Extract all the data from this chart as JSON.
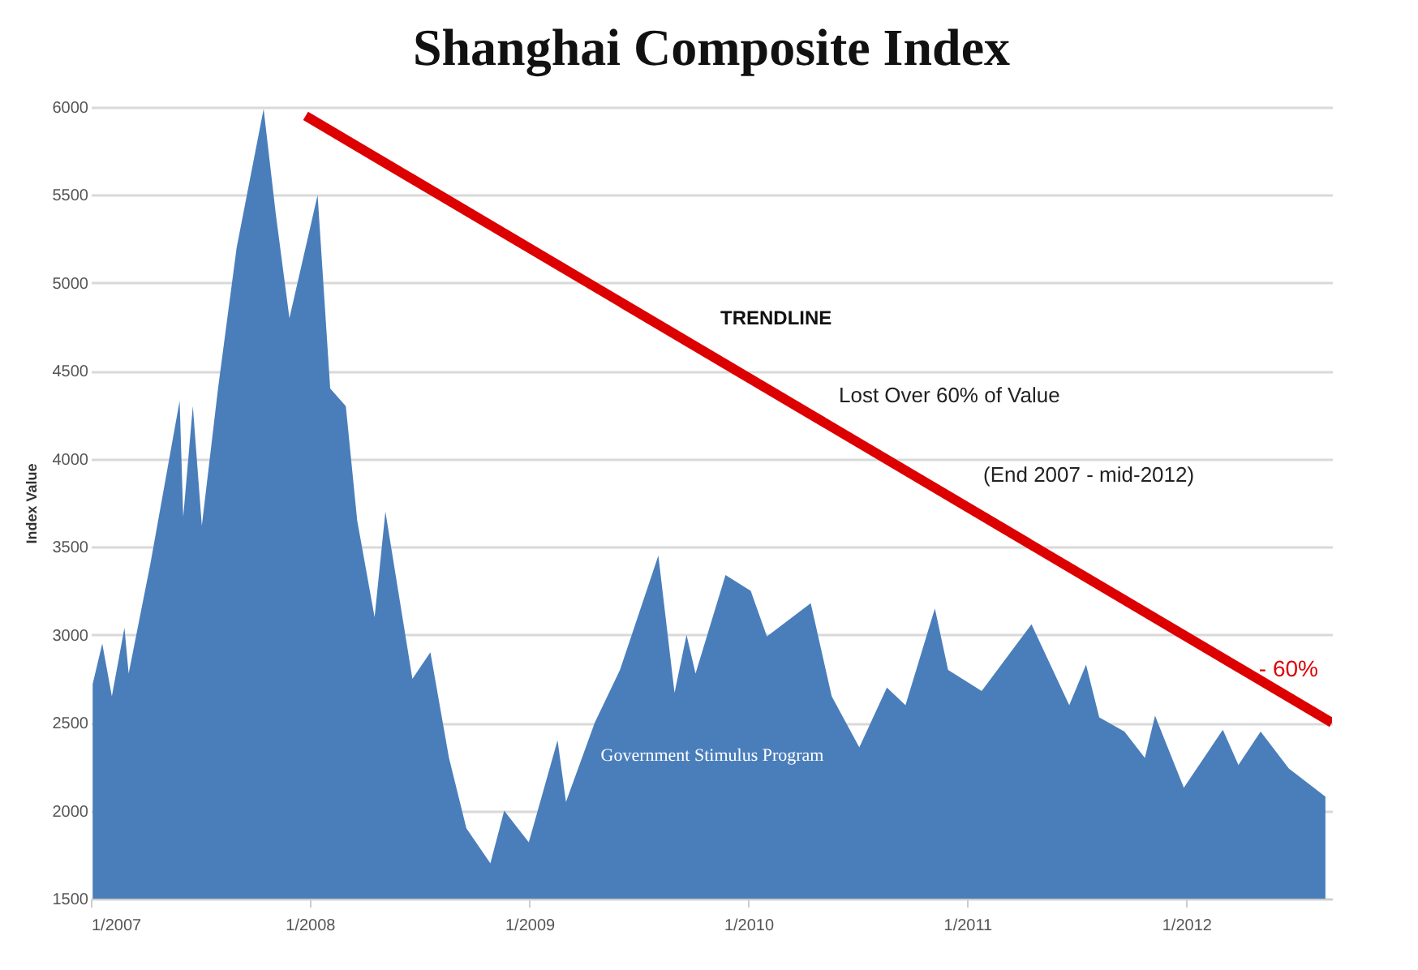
{
  "chart_data": {
    "type": "area",
    "title": "Shanghai Composite Index",
    "ylabel": "Index Value",
    "xlim": [
      "2007-01-01",
      "2012-08-31"
    ],
    "xticks": [
      {
        "value": "2007-01-01",
        "label": "1/2007"
      },
      {
        "value": "2008-01-01",
        "label": "1/2008"
      },
      {
        "value": "2009-01-01",
        "label": "1/2009"
      },
      {
        "value": "2010-01-01",
        "label": "1/2010"
      },
      {
        "value": "2011-01-01",
        "label": "1/2011"
      },
      {
        "value": "2012-01-01",
        "label": "1/2012"
      }
    ],
    "ylim": [
      1500,
      6000
    ],
    "yticks": [
      1500,
      2000,
      2500,
      3000,
      3500,
      4000,
      4500,
      5000,
      5500,
      6000
    ],
    "grid": "y",
    "series": [
      {
        "color": "#4a7ebb",
        "x": [
          "2007-01-04",
          "2007-01-20",
          "2007-02-05",
          "2007-02-26",
          "2007-03-05",
          "2007-04-10",
          "2007-05-29",
          "2007-06-04",
          "2007-06-20",
          "2007-07-05",
          "2007-08-01",
          "2007-09-01",
          "2007-10-16",
          "2007-11-05",
          "2007-11-28",
          "2008-01-14",
          "2008-02-04",
          "2008-03-01",
          "2008-03-20",
          "2008-04-18",
          "2008-05-06",
          "2008-06-20",
          "2008-07-20",
          "2008-08-20",
          "2008-09-18",
          "2008-10-28",
          "2008-11-20",
          "2008-12-31",
          "2009-02-17",
          "2009-03-03",
          "2009-04-20",
          "2009-06-01",
          "2009-08-04",
          "2009-08-31",
          "2009-09-20",
          "2009-10-05",
          "2009-11-24",
          "2010-01-05",
          "2010-02-01",
          "2010-04-15",
          "2010-05-20",
          "2010-07-05",
          "2010-08-20",
          "2010-09-20",
          "2010-11-08",
          "2010-11-30",
          "2011-01-25",
          "2011-04-18",
          "2011-06-20",
          "2011-07-18",
          "2011-08-09",
          "2011-09-20",
          "2011-10-24",
          "2011-11-10",
          "2011-12-28",
          "2012-03-02",
          "2012-03-28",
          "2012-05-04",
          "2012-06-20",
          "2012-08-20"
        ],
        "values": [
          2720,
          2950,
          2650,
          3040,
          2780,
          3400,
          4330,
          3670,
          4300,
          3620,
          4400,
          5200,
          5990,
          5400,
          4800,
          5500,
          4400,
          4300,
          3650,
          3100,
          3700,
          2750,
          2900,
          2300,
          1900,
          1700,
          2000,
          1820,
          2400,
          2050,
          2500,
          2800,
          3450,
          2670,
          3000,
          2780,
          3340,
          3250,
          2990,
          3180,
          2650,
          2360,
          2700,
          2600,
          3150,
          2800,
          2680,
          3060,
          2600,
          2830,
          2530,
          2450,
          2300,
          2540,
          2130,
          2460,
          2260,
          2450,
          2240,
          2080
        ]
      },
      {
        "type": "line",
        "color": "#dd0000",
        "x": [
          "2007-12-25",
          "2012-08-31"
        ],
        "values": [
          5950,
          2500
        ]
      }
    ],
    "annotations": [
      "TRENDLINE",
      "Lost Over 60% of Value",
      "(End 2007 - mid-2012)",
      {
        "text": "- 60%",
        "x": "2012-05-01",
        "y": 2800
      },
      "Government Stimulus Program"
    ]
  }
}
